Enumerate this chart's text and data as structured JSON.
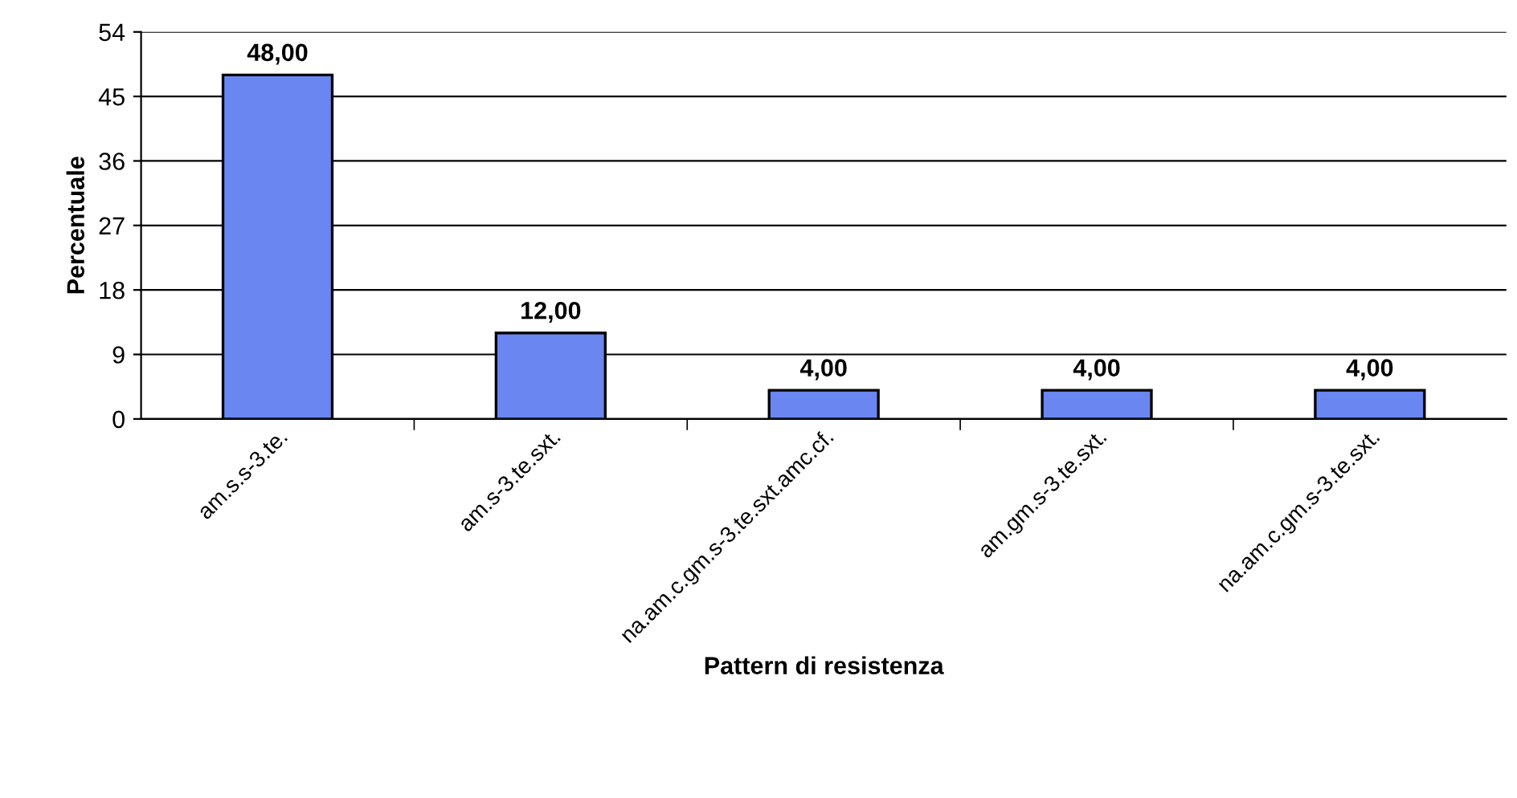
{
  "chart_data": {
    "type": "bar",
    "xlabel": "Pattern di resistenza",
    "ylabel": "Percentuale",
    "categories": [
      "am.s.s-3.te.",
      "am.s-3.te.sxt.",
      "na.am.c.gm.s-3.te.sxt.amc.cf.",
      "am.gm.s-3.te.sxt.",
      "na.am.c.gm.s-3.te.sxt."
    ],
    "values": [
      48,
      12,
      4,
      4,
      4
    ],
    "value_labels": [
      "48,00",
      "12,00",
      "4,00",
      "4,00",
      "4,00"
    ],
    "color": "#6a86f0",
    "ylim": [
      0,
      54
    ],
    "yticks": [
      0,
      9,
      18,
      27,
      36,
      45,
      54
    ],
    "grid": "y",
    "legend": false
  }
}
